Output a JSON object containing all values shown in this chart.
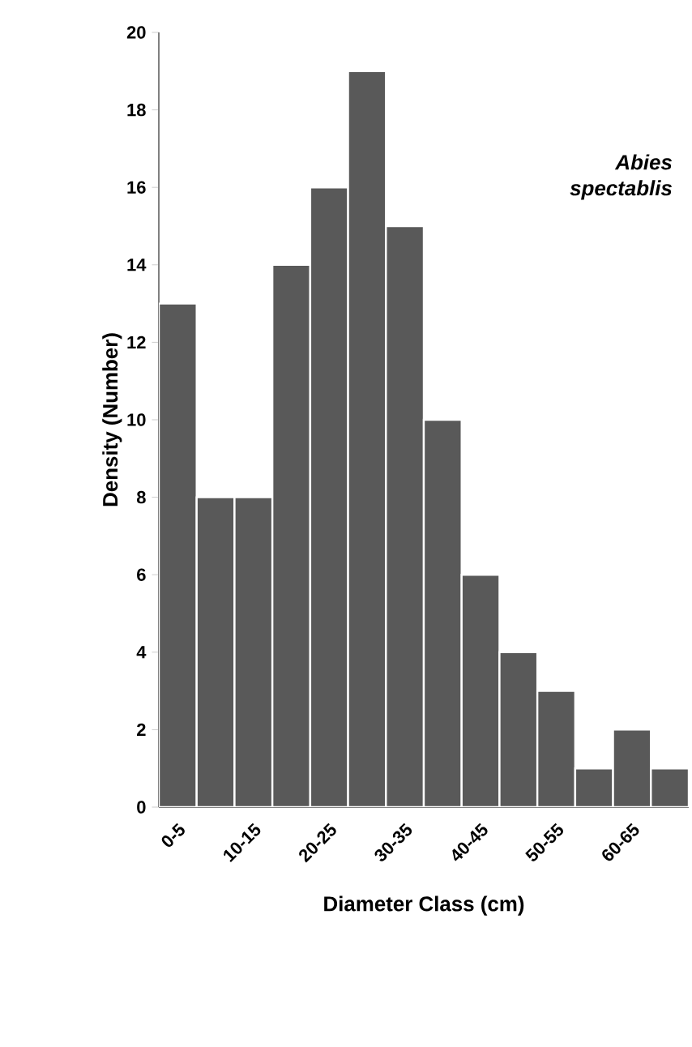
{
  "chart_data": {
    "type": "bar",
    "xlabel": "Diameter Class (cm)",
    "ylabel": "Density (Number)",
    "categories": [
      "0-5",
      null,
      "10-15",
      null,
      "20-25",
      null,
      "30-35",
      null,
      "40-45",
      null,
      "50-55",
      null,
      "60-65",
      null
    ],
    "values": [
      13,
      8,
      8,
      14,
      16,
      19,
      15,
      10,
      6,
      4,
      3,
      1,
      2,
      1
    ],
    "color": "#595959",
    "ylim": [
      0,
      20
    ],
    "yticks": [
      0,
      2,
      4,
      6,
      8,
      10,
      12,
      14,
      16,
      18,
      20
    ],
    "annotations": [
      "Abies spectablis"
    ]
  }
}
